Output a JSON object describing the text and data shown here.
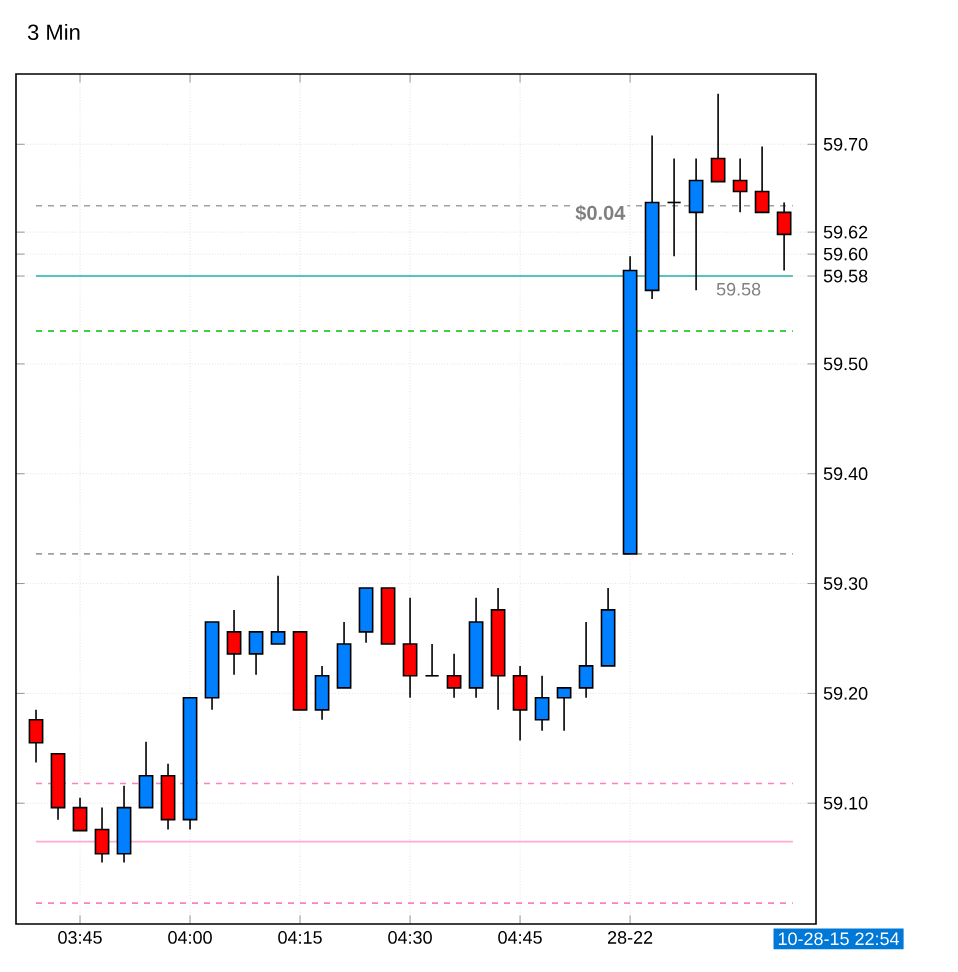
{
  "chart_data": {
    "type": "candlestick",
    "title": "3 Min",
    "categories": [
      null,
      null,
      "03:45",
      null,
      null,
      null,
      null,
      "04:00",
      null,
      null,
      null,
      null,
      "04:15",
      null,
      null,
      null,
      null,
      "04:30",
      null,
      null,
      null,
      null,
      "04:45",
      null,
      null,
      null,
      null,
      "28-22",
      null,
      null,
      null,
      null,
      null,
      null,
      null
    ],
    "ohlc": [
      [
        59.176,
        59.185,
        59.137,
        59.155
      ],
      [
        59.145,
        59.145,
        59.085,
        59.096
      ],
      [
        59.096,
        59.105,
        59.075,
        59.075
      ],
      [
        59.076,
        59.096,
        59.046,
        59.054
      ],
      [
        59.054,
        59.116,
        59.046,
        59.096
      ],
      [
        59.096,
        59.156,
        59.096,
        59.125
      ],
      [
        59.125,
        59.136,
        59.076,
        59.085
      ],
      [
        59.085,
        59.196,
        59.076,
        59.196
      ],
      [
        59.196,
        59.265,
        59.185,
        59.265
      ],
      [
        59.256,
        59.276,
        59.217,
        59.236
      ],
      [
        59.236,
        59.256,
        59.217,
        59.256
      ],
      [
        59.245,
        59.307,
        59.245,
        59.256
      ],
      [
        59.256,
        59.256,
        59.185,
        59.185
      ],
      [
        59.185,
        59.225,
        59.176,
        59.216
      ],
      [
        59.205,
        59.265,
        59.205,
        59.245
      ],
      [
        59.256,
        59.296,
        59.246,
        59.296
      ],
      [
        59.296,
        59.296,
        59.245,
        59.245
      ],
      [
        59.245,
        59.287,
        59.196,
        59.216
      ],
      [
        59.216,
        59.245,
        59.216,
        59.216
      ],
      [
        59.216,
        59.236,
        59.196,
        59.205
      ],
      [
        59.205,
        59.287,
        59.196,
        59.265
      ],
      [
        59.276,
        59.296,
        59.185,
        59.216
      ],
      [
        59.216,
        59.225,
        59.157,
        59.185
      ],
      [
        59.176,
        59.216,
        59.166,
        59.196
      ],
      [
        59.196,
        59.205,
        59.166,
        59.205
      ],
      [
        59.205,
        59.265,
        59.196,
        59.225
      ],
      [
        59.225,
        59.296,
        59.225,
        59.276
      ],
      [
        59.327,
        59.598,
        59.327,
        59.585
      ],
      [
        59.567,
        59.708,
        59.559,
        59.647
      ],
      [
        59.647,
        59.687,
        59.598,
        59.647
      ],
      [
        59.638,
        59.687,
        59.567,
        59.667
      ],
      [
        59.687,
        59.746,
        59.666,
        59.666
      ],
      [
        59.667,
        59.687,
        59.638,
        59.657
      ],
      [
        59.657,
        59.698,
        59.638,
        59.638
      ],
      [
        59.638,
        59.647,
        59.585,
        59.618
      ]
    ],
    "colors": [
      "#ff0000",
      "#ff0000",
      "#ff0000",
      "#ff0000",
      "#0080ff",
      "#0080ff",
      "#ff0000",
      "#0080ff",
      "#0080ff",
      "#ff0000",
      "#0080ff",
      "#0080ff",
      "#ff0000",
      "#0080ff",
      "#0080ff",
      "#0080ff",
      "#ff0000",
      "#ff0000",
      "#000000",
      "#ff0000",
      "#0080ff",
      "#ff0000",
      "#ff0000",
      "#0080ff",
      "#0080ff",
      "#0080ff",
      "#0080ff",
      "#0080ff",
      "#0080ff",
      "#000000",
      "#0080ff",
      "#ff0000",
      "#ff0000",
      "#ff0000",
      "#ff0000"
    ],
    "ylim": [
      58.99,
      59.764
    ],
    "yticks": [
      {
        "value": 59.1,
        "label": "59.10"
      },
      {
        "value": 59.2,
        "label": "59.20"
      },
      {
        "value": 59.3,
        "label": "59.30"
      },
      {
        "value": 59.4,
        "label": "59.40"
      },
      {
        "value": 59.5,
        "label": "59.50"
      },
      {
        "value": 59.6,
        "label": "59.60"
      },
      {
        "value": 59.7,
        "label": "59.70"
      },
      {
        "value": 59.62,
        "label": "59.62"
      },
      {
        "value": 59.58,
        "label": "59.58"
      }
    ],
    "grid": true,
    "ref_lines": [
      {
        "axis": "y",
        "value": 59.644,
        "color": "#a0a0a0",
        "line_style": "dashed"
      },
      {
        "axis": "y",
        "value": 59.53,
        "color": "#00c000",
        "line_style": "dashed"
      },
      {
        "axis": "y",
        "value": 59.58,
        "color": "#20b2b2",
        "line_style": "solid",
        "label": "59.58"
      },
      {
        "axis": "y",
        "value": 59.327,
        "color": "#a0a0a0",
        "line_style": "dashed"
      },
      {
        "axis": "y",
        "value": 59.118,
        "color": "#ff80c0",
        "line_style": "dashed"
      },
      {
        "axis": "y",
        "value": 59.065,
        "color": "#ffaad4",
        "line_style": "solid"
      },
      {
        "axis": "y",
        "value": 59.009,
        "color": "#ff80c0",
        "line_style": "dashed"
      }
    ],
    "annotations": [
      "$0.04",
      "10-28-15 22:54"
    ]
  }
}
